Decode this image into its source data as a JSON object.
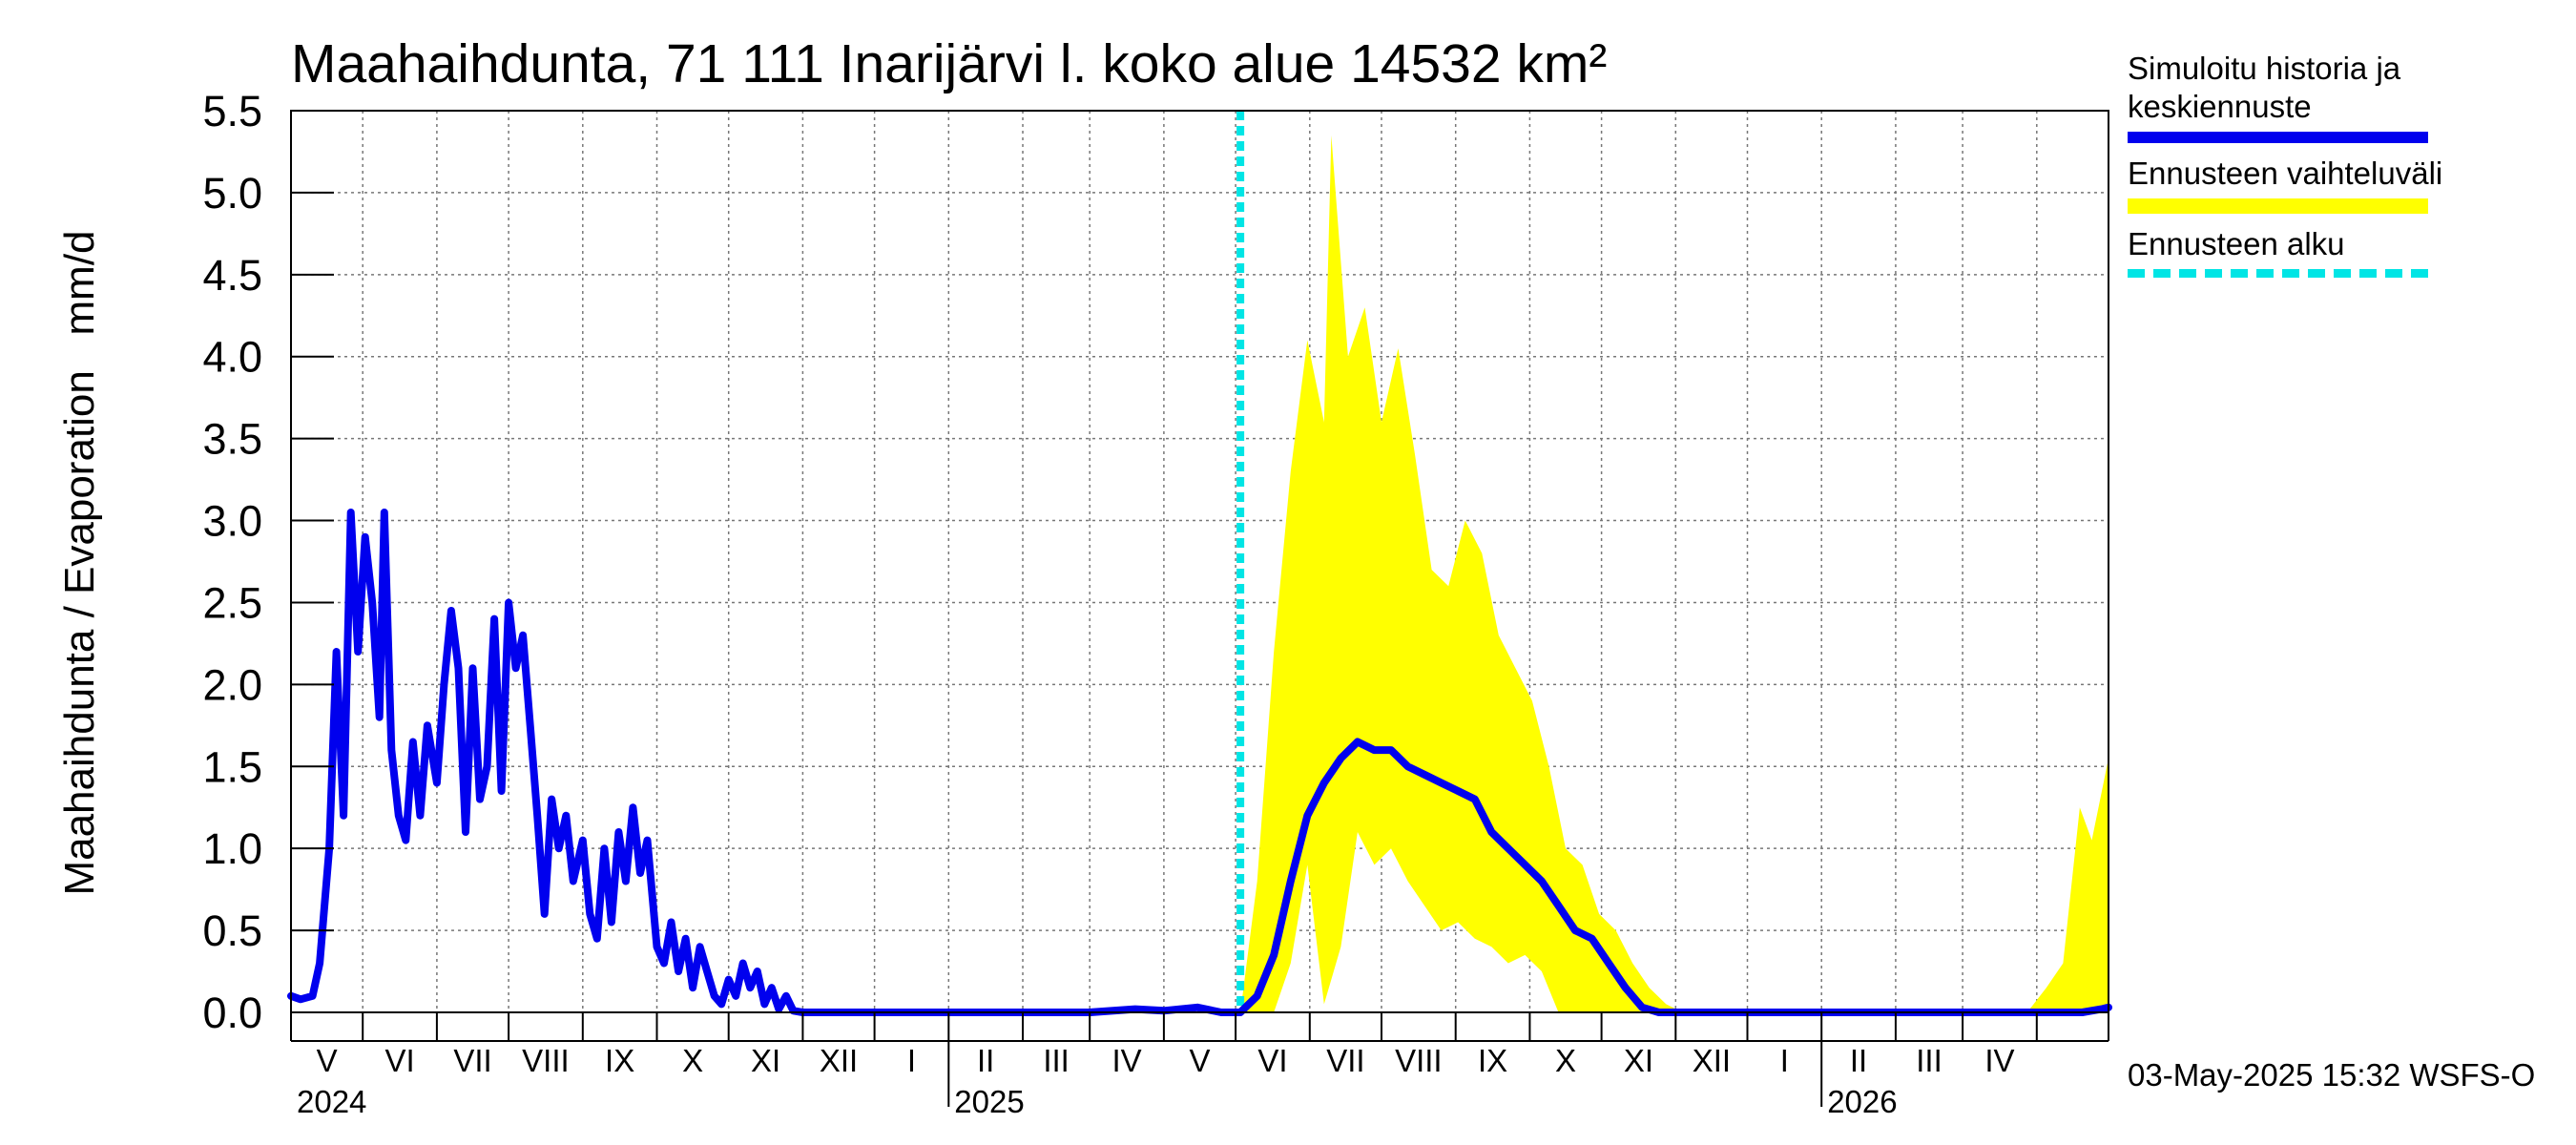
{
  "chart_data": {
    "type": "line",
    "title": "Maahaihdunta, 71 111 Inarijärvi l. koko alue 14532 km²",
    "ylabel": "Maahaihdunta / Evaporation   mm/d",
    "ylim": [
      0,
      5.5
    ],
    "yticks": [
      "0.0",
      "0.5",
      "1.0",
      "1.5",
      "2.0",
      "2.5",
      "3.0",
      "3.5",
      "4.0",
      "4.5",
      "5.0",
      "5.5"
    ],
    "xlim": [
      "2024-04-01",
      "2026-05-01"
    ],
    "month_labels": [
      "V",
      "VI",
      "VII",
      "VIII",
      "IX",
      "X",
      "XI",
      "XII",
      "I",
      "II",
      "III",
      "IV",
      "V",
      "VI",
      "VII",
      "VIII",
      "IX",
      "X",
      "XI",
      "XII",
      "I",
      "II",
      "III",
      "IV"
    ],
    "year_labels": [
      "2024",
      "2025",
      "2026"
    ],
    "grid": true,
    "forecast_start": "2025-05-03",
    "series": [
      {
        "name": "Simuloitu historia ja keskiennuste",
        "color": "#0000ee",
        "points": [
          [
            "2024-04-01",
            0.1
          ],
          [
            "2024-04-05",
            0.08
          ],
          [
            "2024-04-10",
            0.1
          ],
          [
            "2024-04-13",
            0.3
          ],
          [
            "2024-04-17",
            1.0
          ],
          [
            "2024-04-20",
            2.2
          ],
          [
            "2024-04-23",
            1.2
          ],
          [
            "2024-04-26",
            3.05
          ],
          [
            "2024-04-29",
            2.2
          ],
          [
            "2024-05-02",
            2.9
          ],
          [
            "2024-05-05",
            2.5
          ],
          [
            "2024-05-08",
            1.8
          ],
          [
            "2024-05-10",
            3.05
          ],
          [
            "2024-05-13",
            1.6
          ],
          [
            "2024-05-16",
            1.2
          ],
          [
            "2024-05-19",
            1.05
          ],
          [
            "2024-05-22",
            1.65
          ],
          [
            "2024-05-25",
            1.2
          ],
          [
            "2024-05-28",
            1.75
          ],
          [
            "2024-06-01",
            1.4
          ],
          [
            "2024-06-04",
            2.0
          ],
          [
            "2024-06-07",
            2.45
          ],
          [
            "2024-06-10",
            2.1
          ],
          [
            "2024-06-13",
            1.1
          ],
          [
            "2024-06-16",
            2.1
          ],
          [
            "2024-06-19",
            1.3
          ],
          [
            "2024-06-22",
            1.5
          ],
          [
            "2024-06-25",
            2.4
          ],
          [
            "2024-06-28",
            1.35
          ],
          [
            "2024-07-01",
            2.5
          ],
          [
            "2024-07-04",
            2.1
          ],
          [
            "2024-07-07",
            2.3
          ],
          [
            "2024-07-10",
            1.75
          ],
          [
            "2024-07-13",
            1.2
          ],
          [
            "2024-07-16",
            0.6
          ],
          [
            "2024-07-19",
            1.3
          ],
          [
            "2024-07-22",
            1.0
          ],
          [
            "2024-07-25",
            1.2
          ],
          [
            "2024-07-28",
            0.8
          ],
          [
            "2024-08-01",
            1.05
          ],
          [
            "2024-08-04",
            0.6
          ],
          [
            "2024-08-07",
            0.45
          ],
          [
            "2024-08-10",
            1.0
          ],
          [
            "2024-08-13",
            0.55
          ],
          [
            "2024-08-16",
            1.1
          ],
          [
            "2024-08-19",
            0.8
          ],
          [
            "2024-08-22",
            1.25
          ],
          [
            "2024-08-25",
            0.85
          ],
          [
            "2024-08-28",
            1.05
          ],
          [
            "2024-09-01",
            0.4
          ],
          [
            "2024-09-04",
            0.3
          ],
          [
            "2024-09-07",
            0.55
          ],
          [
            "2024-09-10",
            0.25
          ],
          [
            "2024-09-13",
            0.45
          ],
          [
            "2024-09-16",
            0.15
          ],
          [
            "2024-09-19",
            0.4
          ],
          [
            "2024-09-22",
            0.25
          ],
          [
            "2024-09-25",
            0.1
          ],
          [
            "2024-09-28",
            0.05
          ],
          [
            "2024-10-01",
            0.2
          ],
          [
            "2024-10-04",
            0.1
          ],
          [
            "2024-10-07",
            0.3
          ],
          [
            "2024-10-10",
            0.15
          ],
          [
            "2024-10-13",
            0.25
          ],
          [
            "2024-10-16",
            0.05
          ],
          [
            "2024-10-19",
            0.15
          ],
          [
            "2024-10-22",
            0.02
          ],
          [
            "2024-10-25",
            0.1
          ],
          [
            "2024-10-28",
            0.01
          ],
          [
            "2024-11-01",
            0.0
          ],
          [
            "2025-01-15",
            0.0
          ],
          [
            "2025-03-01",
            0.0
          ],
          [
            "2025-03-20",
            0.02
          ],
          [
            "2025-04-01",
            0.01
          ],
          [
            "2025-04-15",
            0.03
          ],
          [
            "2025-04-25",
            0.0
          ],
          [
            "2025-05-03",
            0.0
          ],
          [
            "2025-05-10",
            0.1
          ],
          [
            "2025-05-17",
            0.35
          ],
          [
            "2025-05-24",
            0.8
          ],
          [
            "2025-05-31",
            1.2
          ],
          [
            "2025-06-07",
            1.4
          ],
          [
            "2025-06-14",
            1.55
          ],
          [
            "2025-06-21",
            1.65
          ],
          [
            "2025-06-28",
            1.6
          ],
          [
            "2025-07-05",
            1.6
          ],
          [
            "2025-07-12",
            1.5
          ],
          [
            "2025-07-19",
            1.45
          ],
          [
            "2025-07-26",
            1.4
          ],
          [
            "2025-08-02",
            1.35
          ],
          [
            "2025-08-09",
            1.3
          ],
          [
            "2025-08-16",
            1.1
          ],
          [
            "2025-08-23",
            1.0
          ],
          [
            "2025-08-30",
            0.9
          ],
          [
            "2025-09-06",
            0.8
          ],
          [
            "2025-09-13",
            0.65
          ],
          [
            "2025-09-20",
            0.5
          ],
          [
            "2025-09-27",
            0.45
          ],
          [
            "2025-10-04",
            0.3
          ],
          [
            "2025-10-11",
            0.15
          ],
          [
            "2025-10-18",
            0.03
          ],
          [
            "2025-10-25",
            0.0
          ],
          [
            "2026-04-20",
            0.0
          ],
          [
            "2026-04-28",
            0.02
          ],
          [
            "2026-05-01",
            0.03
          ]
        ]
      },
      {
        "name": "Ennusteen vaihteluväli",
        "color": "#ffff00",
        "upper": [
          [
            "2025-05-03",
            0.0
          ],
          [
            "2025-05-10",
            0.8
          ],
          [
            "2025-05-17",
            2.2
          ],
          [
            "2025-05-24",
            3.3
          ],
          [
            "2025-05-31",
            4.1
          ],
          [
            "2025-06-07",
            3.6
          ],
          [
            "2025-06-10",
            5.35
          ],
          [
            "2025-06-17",
            4.0
          ],
          [
            "2025-06-24",
            4.3
          ],
          [
            "2025-07-01",
            3.6
          ],
          [
            "2025-07-08",
            4.05
          ],
          [
            "2025-07-15",
            3.4
          ],
          [
            "2025-07-22",
            2.7
          ],
          [
            "2025-07-29",
            2.6
          ],
          [
            "2025-08-05",
            3.0
          ],
          [
            "2025-08-12",
            2.8
          ],
          [
            "2025-08-19",
            2.3
          ],
          [
            "2025-08-26",
            2.1
          ],
          [
            "2025-09-02",
            1.9
          ],
          [
            "2025-09-09",
            1.5
          ],
          [
            "2025-09-16",
            1.0
          ],
          [
            "2025-09-23",
            0.9
          ],
          [
            "2025-09-30",
            0.6
          ],
          [
            "2025-10-07",
            0.5
          ],
          [
            "2025-10-14",
            0.3
          ],
          [
            "2025-10-21",
            0.15
          ],
          [
            "2025-10-28",
            0.05
          ],
          [
            "2025-11-04",
            0.0
          ],
          [
            "2026-03-28",
            0.0
          ],
          [
            "2026-04-05",
            0.15
          ],
          [
            "2026-04-12",
            0.3
          ],
          [
            "2026-04-19",
            1.25
          ],
          [
            "2026-04-24",
            1.05
          ],
          [
            "2026-05-01",
            1.55
          ]
        ],
        "lower": [
          [
            "2025-05-03",
            0.0
          ],
          [
            "2025-05-10",
            0.0
          ],
          [
            "2025-05-17",
            0.0
          ],
          [
            "2025-05-24",
            0.3
          ],
          [
            "2025-05-31",
            0.9
          ],
          [
            "2025-06-07",
            0.05
          ],
          [
            "2025-06-14",
            0.4
          ],
          [
            "2025-06-21",
            1.1
          ],
          [
            "2025-06-28",
            0.9
          ],
          [
            "2025-07-05",
            1.0
          ],
          [
            "2025-07-12",
            0.8
          ],
          [
            "2025-07-19",
            0.65
          ],
          [
            "2025-07-26",
            0.5
          ],
          [
            "2025-08-02",
            0.55
          ],
          [
            "2025-08-09",
            0.45
          ],
          [
            "2025-08-16",
            0.4
          ],
          [
            "2025-08-23",
            0.3
          ],
          [
            "2025-08-30",
            0.35
          ],
          [
            "2025-09-06",
            0.25
          ],
          [
            "2025-09-13",
            0.0
          ],
          [
            "2026-05-01",
            0.0
          ]
        ]
      }
    ]
  },
  "legend": {
    "entries": [
      {
        "label": "Simuloitu historia ja keskiennuste",
        "color": "#0000ee"
      },
      {
        "label": "Ennusteen vaihteluväli",
        "color": "#ffff00"
      },
      {
        "label": "Ennusteen alku",
        "color": "#00e5e5"
      }
    ]
  },
  "footer": "03-May-2025 15:32 WSFS-O"
}
